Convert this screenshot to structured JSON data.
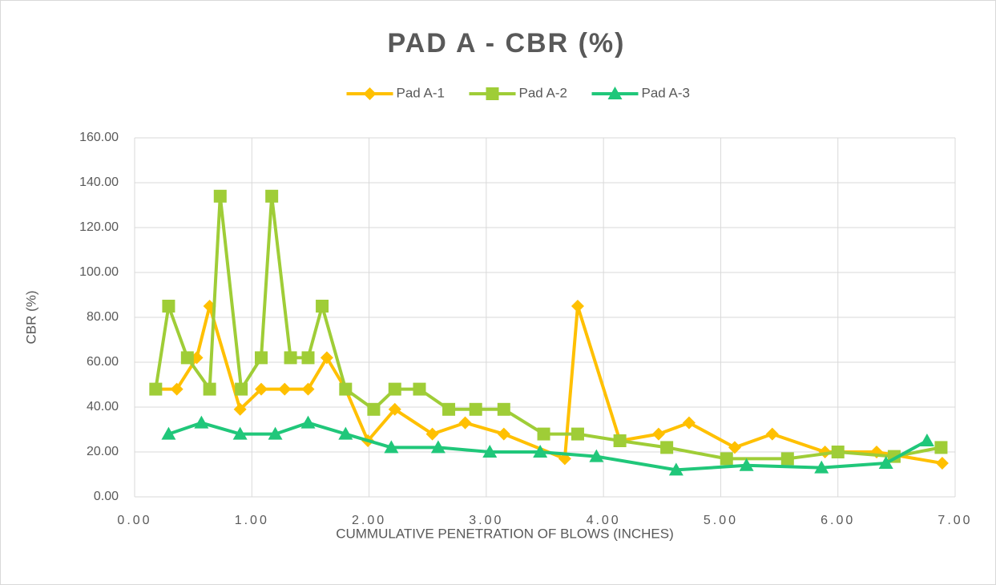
{
  "chart_data": {
    "type": "line",
    "title": "PAD A - CBR (%)",
    "x_label": "CUMMULATIVE PENETRATION OF BLOWS (INCHES)",
    "y_label": "CBR (%)",
    "xlim": [
      0,
      7
    ],
    "ylim": [
      0,
      160
    ],
    "xticks": [
      {
        "value": 0,
        "label": "0.00"
      },
      {
        "value": 1,
        "label": "1.00"
      },
      {
        "value": 2,
        "label": "2.00"
      },
      {
        "value": 3,
        "label": "3.00"
      },
      {
        "value": 4,
        "label": "4.00"
      },
      {
        "value": 5,
        "label": "5.00"
      },
      {
        "value": 6,
        "label": "6.00"
      },
      {
        "value": 7,
        "label": "7.00"
      }
    ],
    "yticks": [
      {
        "value": 0,
        "label": "0.00"
      },
      {
        "value": 20,
        "label": "20.00"
      },
      {
        "value": 40,
        "label": "40.00"
      },
      {
        "value": 60,
        "label": "60.00"
      },
      {
        "value": 80,
        "label": "80.00"
      },
      {
        "value": 100,
        "label": "100.00"
      },
      {
        "value": 120,
        "label": "120.00"
      },
      {
        "value": 140,
        "label": "140.00"
      },
      {
        "value": 160,
        "label": "160.00"
      }
    ],
    "grid": true,
    "legend": "top",
    "series": [
      {
        "name": "Pad A-1",
        "color": "#FFC000",
        "marker": "diamond",
        "x": [
          0.18,
          0.36,
          0.53,
          0.64,
          0.9,
          1.08,
          1.28,
          1.48,
          1.64,
          1.8,
          1.99,
          2.22,
          2.54,
          2.82,
          3.15,
          3.67,
          3.78,
          4.14,
          4.47,
          4.73,
          5.12,
          5.44,
          5.89,
          6.33,
          6.89
        ],
        "values": [
          48,
          48,
          62,
          85,
          39,
          48,
          48,
          48,
          62,
          48,
          25,
          39,
          28,
          33,
          28,
          17,
          85,
          25,
          28,
          33,
          22,
          28,
          20,
          20,
          15
        ]
      },
      {
        "name": "Pad A-2",
        "color": "#9FCD37",
        "marker": "square",
        "x": [
          0.18,
          0.29,
          0.45,
          0.64,
          0.73,
          0.91,
          1.08,
          1.17,
          1.33,
          1.48,
          1.6,
          1.8,
          2.04,
          2.22,
          2.43,
          2.68,
          2.91,
          3.15,
          3.49,
          3.78,
          4.14,
          4.54,
          5.05,
          5.57,
          6.0,
          6.48,
          6.88
        ],
        "values": [
          48,
          85,
          62,
          48,
          134,
          48,
          62,
          134,
          62,
          62,
          85,
          48,
          39,
          48,
          48,
          39,
          39,
          39,
          28,
          28,
          25,
          22,
          17,
          17,
          20,
          18,
          22
        ]
      },
      {
        "name": "Pad A-3",
        "color": "#20C77A",
        "marker": "triangle",
        "x": [
          0.29,
          0.57,
          0.9,
          1.2,
          1.48,
          1.8,
          2.19,
          2.59,
          3.03,
          3.46,
          3.94,
          4.62,
          5.22,
          5.86,
          6.41,
          6.76
        ],
        "values": [
          28,
          33,
          28,
          28,
          33,
          28,
          22,
          22,
          20,
          20,
          18,
          12,
          14,
          13,
          15,
          25
        ]
      }
    ]
  }
}
